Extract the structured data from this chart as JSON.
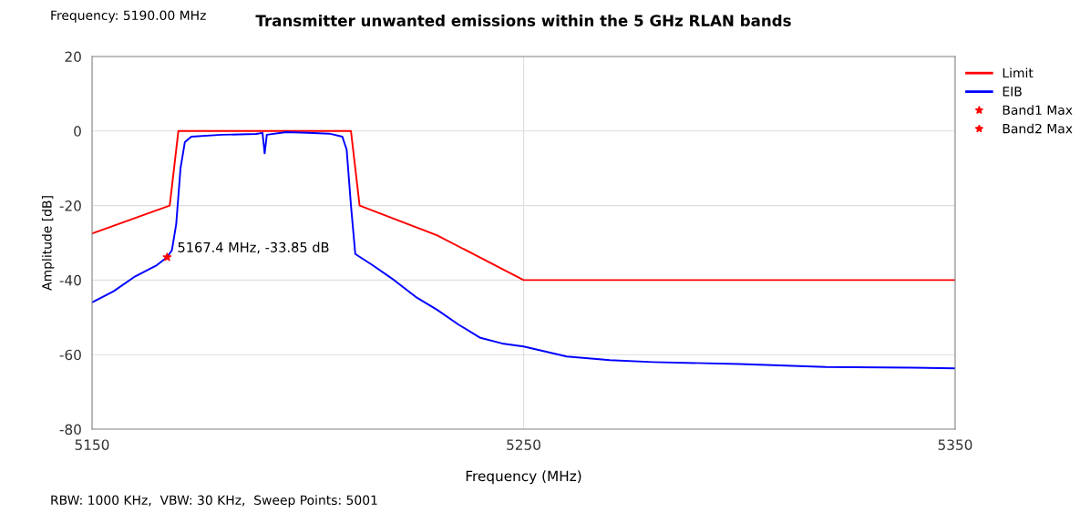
{
  "chart_data": {
    "type": "line",
    "title": "Transmitter unwanted emissions within the 5 GHz RLAN bands",
    "xlabel": "Frequency (MHz)",
    "ylabel": "Amplitude [dB]",
    "xlim": [
      5150,
      5350
    ],
    "xticks": [
      5150,
      5250,
      5350
    ],
    "ylim": [
      -80,
      20
    ],
    "yticks": [
      -80,
      -60,
      -40,
      -20,
      0,
      20
    ],
    "grid": true,
    "legend": "top right",
    "marker": "none",
    "series": [
      {
        "name": "Limit",
        "color": "#ff0000",
        "x": [
          5150,
          5168,
          5170,
          5210,
          5212,
          5230,
          5250,
          5350
        ],
        "values": [
          -27.5,
          -20,
          0,
          0,
          -20,
          -28,
          -40,
          -40
        ]
      },
      {
        "name": "EIB",
        "color": "#0000ff",
        "x": [
          5150,
          5155,
          5160,
          5165,
          5167.4,
          5168.5,
          5169.5,
          5170.5,
          5171.5,
          5173,
          5180,
          5188,
          5189.5,
          5190,
          5190.5,
          5195,
          5200,
          5205,
          5208,
          5209,
          5210,
          5211,
          5215,
          5220,
          5225,
          5230,
          5235,
          5240,
          5245,
          5250,
          5260,
          5270,
          5280,
          5300,
          5320,
          5340,
          5350
        ],
        "values": [
          -46,
          -43,
          -39,
          -36,
          -33.85,
          -32,
          -25,
          -10,
          -3,
          -1.5,
          -1,
          -0.8,
          -0.5,
          -6,
          -1,
          -0.3,
          -0.5,
          -0.7,
          -1.5,
          -5,
          -20,
          -33,
          -36,
          -40,
          -44.5,
          -48,
          -52,
          -55.5,
          -57,
          -57.8,
          -60.5,
          -61.5,
          -62,
          -62.5,
          -63.3,
          -63.5,
          -63.7
        ]
      },
      {
        "name": "Band1 Max",
        "type": "scatter",
        "marker": "star",
        "color": "#ff0000",
        "x": [
          5167.4
        ],
        "values": [
          -33.85
        ]
      },
      {
        "name": "Band2 Max",
        "type": "scatter",
        "marker": "star",
        "color": "#ff0000"
      }
    ],
    "annotations": [
      {
        "text": "5167.4 MHz, -33.85 dB",
        "x": 5167.4,
        "y": -33.85
      },
      "Frequency: 5190.00 MHz",
      "RBW: 1000 KHz,  VBW: 30 KHz,  Sweep Points: 5001"
    ]
  }
}
